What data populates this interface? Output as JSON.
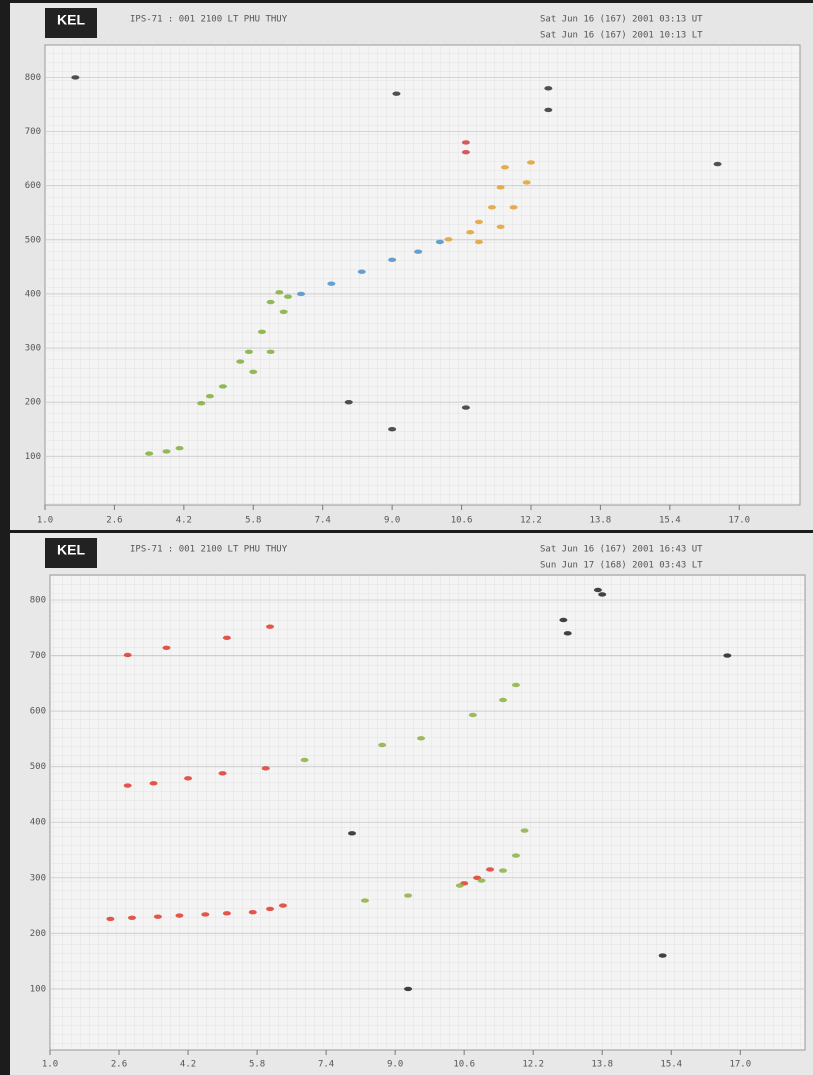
{
  "chart_data": [
    {
      "type": "scatter",
      "logo": "KEL",
      "title": "IPS-71 : 001 2100 LT PHU THUY",
      "timestamps": [
        "Sat Jun 16 (167) 2001 03:13 UT",
        "Sat Jun 16 (167) 2001 10:13 LT"
      ],
      "xlim": [
        1.0,
        18.4
      ],
      "xticks": [
        {
          "value": 1.0,
          "label": "1.0"
        },
        2.6,
        4.2,
        5.8,
        7.4,
        {
          "value": 9.0,
          "label": "9.0"
        },
        10.6,
        12.2,
        13.8,
        15.4,
        {
          "value": 17.0,
          "label": "17.0"
        }
      ],
      "ylim": [
        10,
        860
      ],
      "yticks": [
        800,
        700,
        600,
        500,
        400,
        300,
        200,
        100
      ],
      "grid": true,
      "series": [
        {
          "color": "#7fae3a",
          "x": [
            3.4,
            3.8,
            4.1,
            4.6,
            4.8,
            5.1,
            5.5,
            5.7,
            6.0,
            6.2,
            6.4,
            5.8,
            6.2,
            6.5,
            6.6
          ],
          "values": [
            105,
            109,
            115,
            198,
            211,
            229,
            275,
            293,
            330,
            385,
            403,
            256,
            293,
            367,
            395
          ]
        },
        {
          "color": "#4f8fc8",
          "x": [
            6.9,
            7.6,
            8.3,
            9.0,
            9.6,
            10.1
          ],
          "values": [
            400,
            419,
            441,
            463,
            478,
            496
          ]
        },
        {
          "color": "#e0a030",
          "x": [
            10.3,
            10.8,
            11.0,
            11.3,
            11.5,
            11.6,
            11.0,
            11.5,
            11.8,
            12.1,
            12.2
          ],
          "values": [
            501,
            514,
            533,
            560,
            597,
            634,
            496,
            524,
            560,
            606,
            643
          ]
        },
        {
          "color": "#d04040",
          "x": [
            10.7,
            10.7
          ],
          "values": [
            662,
            680
          ]
        },
        {
          "color": "#333333",
          "x": [
            1.7,
            8.0,
            9.0,
            12.6,
            12.6,
            9.1,
            10.7,
            16.5
          ],
          "values": [
            800,
            200,
            150,
            780,
            740,
            770,
            190,
            640
          ]
        }
      ]
    },
    {
      "type": "scatter",
      "logo": "KEL",
      "title": "IPS-71 : 001 2100 LT PHU THUY",
      "timestamps": [
        "Sat Jun 16 (167) 2001 16:43 UT",
        "Sun Jun 17 (168) 2001 03:43 LT"
      ],
      "xlim": [
        1.0,
        18.5
      ],
      "xticks": [
        {
          "value": 1.0,
          "label": "1.0"
        },
        2.6,
        4.2,
        5.8,
        7.4,
        {
          "value": 9.0,
          "label": "9.0"
        },
        10.6,
        12.2,
        13.8,
        15.4,
        {
          "value": 17.0,
          "label": "17.0"
        }
      ],
      "ylim": [
        -10,
        845
      ],
      "yticks": [
        800,
        700,
        600,
        500,
        400,
        300,
        200,
        100
      ],
      "grid": true,
      "series": [
        {
          "color": "#e03a2a",
          "x": [
            2.4,
            2.9,
            3.5,
            4.0,
            4.6,
            5.1,
            5.7,
            6.1,
            6.4,
            2.8,
            3.4,
            4.2,
            5.0,
            6.0,
            2.8,
            3.7,
            5.1,
            6.1,
            10.6,
            10.9,
            11.2
          ],
          "values": [
            226,
            228,
            230,
            232,
            234,
            236,
            238,
            244,
            250,
            466,
            470,
            479,
            488,
            497,
            701,
            714,
            732,
            752,
            290,
            300,
            315
          ]
        },
        {
          "color": "#8db040",
          "x": [
            8.3,
            9.3,
            10.5,
            11.0,
            11.5,
            11.8,
            12.0,
            6.9,
            8.7,
            9.6,
            10.8,
            11.5,
            11.8
          ],
          "values": [
            259,
            268,
            286,
            295,
            313,
            340,
            385,
            512,
            539,
            551,
            593,
            620,
            647
          ]
        },
        {
          "color": "#222222",
          "x": [
            12.9,
            13.0,
            13.7,
            13.8,
            8.0,
            9.3,
            16.7,
            15.2
          ],
          "values": [
            764,
            740,
            818,
            810,
            380,
            100,
            700,
            160
          ]
        }
      ]
    }
  ]
}
